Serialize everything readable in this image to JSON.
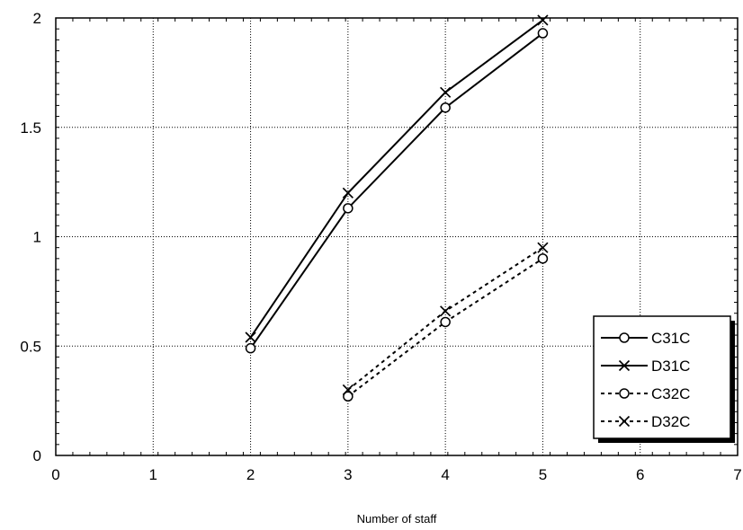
{
  "chart_data": {
    "type": "line",
    "title": "",
    "xlabel": "Number of staff",
    "ylabel": "",
    "xlim": [
      0,
      7
    ],
    "ylim": [
      0,
      2
    ],
    "x_ticks": [
      "0",
      "1",
      "2",
      "3",
      "4",
      "5",
      "6",
      "7"
    ],
    "y_ticks": [
      "0",
      "0.5",
      "1",
      "1.5",
      "2"
    ],
    "grid": true,
    "legend_position": "bottom-right",
    "series": [
      {
        "name": "C31C",
        "marker": "circle",
        "line": "solid",
        "color": "#000000",
        "x": [
          2,
          3,
          4,
          5
        ],
        "y": [
          0.49,
          1.13,
          1.59,
          1.93
        ]
      },
      {
        "name": "D31C",
        "marker": "x",
        "line": "solid",
        "color": "#000000",
        "x": [
          2,
          3,
          4,
          5
        ],
        "y": [
          0.54,
          1.2,
          1.66,
          1.99
        ]
      },
      {
        "name": "C32C",
        "marker": "circle",
        "line": "dashed",
        "color": "#000000",
        "x": [
          3,
          4,
          5
        ],
        "y": [
          0.27,
          0.61,
          0.9
        ]
      },
      {
        "name": "D32C",
        "marker": "x",
        "line": "dashed",
        "color": "#000000",
        "x": [
          3,
          4,
          5
        ],
        "y": [
          0.3,
          0.66,
          0.95
        ]
      }
    ]
  }
}
